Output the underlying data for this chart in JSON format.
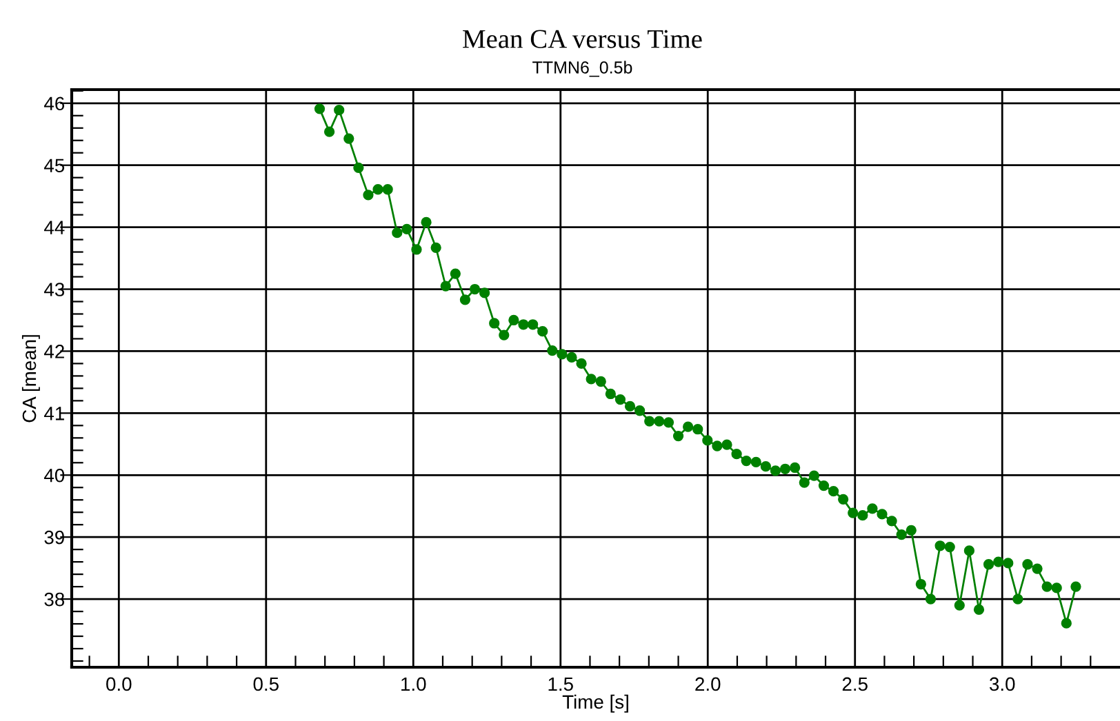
{
  "chart_data": {
    "type": "line",
    "title": "Mean CA versus Time",
    "subtitle": "TTMN6_0.5b",
    "xlabel": "Time [s]",
    "ylabel": "CA [mean]",
    "x": [
      0.682,
      0.715,
      0.748,
      0.781,
      0.814,
      0.847,
      0.88,
      0.913,
      0.945,
      0.978,
      1.011,
      1.044,
      1.077,
      1.11,
      1.143,
      1.176,
      1.209,
      1.242,
      1.275,
      1.308,
      1.341,
      1.374,
      1.406,
      1.439,
      1.472,
      1.505,
      1.538,
      1.571,
      1.604,
      1.637,
      1.67,
      1.703,
      1.736,
      1.769,
      1.802,
      1.835,
      1.867,
      1.9,
      1.933,
      1.966,
      1.999,
      2.032,
      2.065,
      2.098,
      2.131,
      2.164,
      2.197,
      2.23,
      2.263,
      2.296,
      2.328,
      2.361,
      2.394,
      2.427,
      2.46,
      2.493,
      2.526,
      2.559,
      2.592,
      2.625,
      2.658,
      2.691,
      2.724,
      2.757,
      2.789,
      2.822,
      2.855,
      2.888,
      2.921,
      2.954,
      2.987,
      3.02,
      3.053,
      3.086,
      3.119,
      3.152,
      3.185,
      3.218,
      3.25
    ],
    "series": [
      {
        "color": "#008000",
        "values": [
          45.91,
          45.54,
          45.89,
          45.43,
          44.96,
          44.52,
          44.61,
          44.61,
          43.91,
          43.97,
          43.64,
          44.08,
          43.67,
          43.05,
          43.25,
          42.83,
          43.0,
          42.94,
          42.45,
          42.26,
          42.5,
          42.43,
          42.43,
          42.32,
          42.01,
          41.95,
          41.9,
          41.8,
          41.55,
          41.51,
          41.31,
          41.22,
          41.11,
          41.04,
          40.87,
          40.87,
          40.85,
          40.63,
          40.78,
          40.74,
          40.56,
          40.47,
          40.49,
          40.34,
          40.23,
          40.21,
          40.14,
          40.07,
          40.1,
          40.12,
          39.88,
          39.99,
          39.83,
          39.74,
          39.61,
          39.39,
          39.35,
          39.46,
          39.37,
          39.26,
          39.04,
          39.11,
          38.24,
          38.0,
          38.86,
          38.84,
          37.9,
          38.78,
          37.83,
          38.56,
          38.6,
          38.58,
          38.0,
          38.56,
          38.49,
          38.2,
          38.18,
          37.61,
          38.2
        ]
      }
    ],
    "xlim": [
      -0.16,
      3.4
    ],
    "ylim": [
      36.9,
      46.22
    ],
    "xticks": [
      {
        "value": -0.1,
        "label": null
      },
      {
        "value": 0.0,
        "label": "0.0"
      },
      {
        "value": 0.1,
        "label": null
      },
      {
        "value": 0.2,
        "label": null
      },
      {
        "value": 0.3,
        "label": null
      },
      {
        "value": 0.4,
        "label": null
      },
      {
        "value": 0.5,
        "label": "0.5"
      },
      {
        "value": 0.6,
        "label": null
      },
      {
        "value": 0.7,
        "label": null
      },
      {
        "value": 0.8,
        "label": null
      },
      {
        "value": 0.9,
        "label": null
      },
      {
        "value": 1.0,
        "label": "1.0"
      },
      {
        "value": 1.1,
        "label": null
      },
      {
        "value": 1.2,
        "label": null
      },
      {
        "value": 1.3,
        "label": null
      },
      {
        "value": 1.4,
        "label": null
      },
      {
        "value": 1.5,
        "label": "1.5"
      },
      {
        "value": 1.6,
        "label": null
      },
      {
        "value": 1.7,
        "label": null
      },
      {
        "value": 1.8,
        "label": null
      },
      {
        "value": 1.9,
        "label": null
      },
      {
        "value": 2.0,
        "label": "2.0"
      },
      {
        "value": 2.1,
        "label": null
      },
      {
        "value": 2.2,
        "label": null
      },
      {
        "value": 2.3,
        "label": null
      },
      {
        "value": 2.4,
        "label": null
      },
      {
        "value": 2.5,
        "label": "2.5"
      },
      {
        "value": 2.6,
        "label": null
      },
      {
        "value": 2.7,
        "label": null
      },
      {
        "value": 2.8,
        "label": null
      },
      {
        "value": 2.9,
        "label": null
      },
      {
        "value": 3.0,
        "label": "3.0"
      },
      {
        "value": 3.1,
        "label": null
      },
      {
        "value": 3.2,
        "label": null
      },
      {
        "value": 3.3,
        "label": null
      }
    ],
    "yticks": [
      {
        "value": 37.0,
        "label": null
      },
      {
        "value": 37.2,
        "label": null
      },
      {
        "value": 37.4,
        "label": null
      },
      {
        "value": 37.6,
        "label": null
      },
      {
        "value": 37.8,
        "label": null
      },
      38,
      {
        "value": 38.2,
        "label": null
      },
      {
        "value": 38.4,
        "label": null
      },
      {
        "value": 38.6,
        "label": null
      },
      {
        "value": 38.8,
        "label": null
      },
      39,
      {
        "value": 39.2,
        "label": null
      },
      {
        "value": 39.4,
        "label": null
      },
      {
        "value": 39.6,
        "label": null
      },
      {
        "value": 39.8,
        "label": null
      },
      40,
      {
        "value": 40.2,
        "label": null
      },
      {
        "value": 40.4,
        "label": null
      },
      {
        "value": 40.6,
        "label": null
      },
      {
        "value": 40.8,
        "label": null
      },
      41,
      {
        "value": 41.2,
        "label": null
      },
      {
        "value": 41.4,
        "label": null
      },
      {
        "value": 41.6,
        "label": null
      },
      {
        "value": 41.8,
        "label": null
      },
      42,
      {
        "value": 42.2,
        "label": null
      },
      {
        "value": 42.4,
        "label": null
      },
      {
        "value": 42.6,
        "label": null
      },
      {
        "value": 42.8,
        "label": null
      },
      43,
      {
        "value": 43.2,
        "label": null
      },
      {
        "value": 43.4,
        "label": null
      },
      {
        "value": 43.6,
        "label": null
      },
      {
        "value": 43.8,
        "label": null
      },
      44,
      {
        "value": 44.2,
        "label": null
      },
      {
        "value": 44.4,
        "label": null
      },
      {
        "value": 44.6,
        "label": null
      },
      {
        "value": 44.8,
        "label": null
      },
      45,
      {
        "value": 45.2,
        "label": null
      },
      {
        "value": 45.4,
        "label": null
      },
      {
        "value": 45.6,
        "label": null
      },
      {
        "value": 45.8,
        "label": null
      },
      46,
      {
        "value": 46.2,
        "label": null
      }
    ],
    "grid": true,
    "marker": "circle",
    "line_style": "solid",
    "legend": false
  }
}
